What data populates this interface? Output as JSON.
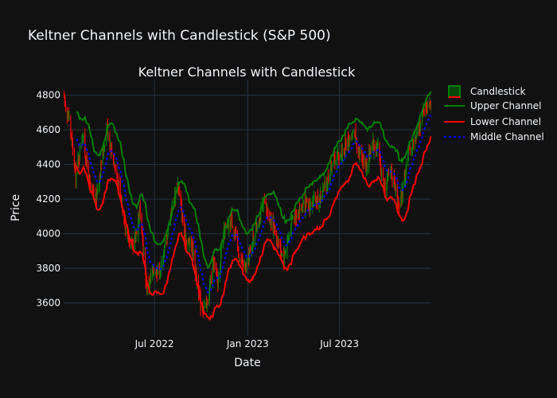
{
  "page_title": "Keltner Channels with Candlestick (S&P 500)",
  "colors": {
    "background": "#111111",
    "grid": "#283442",
    "text": "#f2f5fa",
    "increasing": "#008000",
    "decreasing": "#ff0000",
    "upper": "#008000",
    "lower": "#ff0000",
    "middle": "#0000ff"
  },
  "chart_data": {
    "type": "candlestick",
    "title": "Keltner Channels with Candlestick",
    "xlabel": "Date",
    "ylabel": "Price",
    "x_range": [
      "2022-01-03",
      "2023-12-29"
    ],
    "ylim": [
      3410,
      4890
    ],
    "x_ticks": [
      {
        "date": "2022-07-01",
        "label": "Jul 2022"
      },
      {
        "date": "2023-01-01",
        "label": "Jan 2023"
      },
      {
        "date": "2023-07-01",
        "label": "Jul 2023"
      }
    ],
    "y_ticks": [
      3600,
      3800,
      4000,
      4200,
      4400,
      4600,
      4800
    ],
    "legend": {
      "position": "top-right",
      "entries": [
        "Candlestick",
        "Upper Channel",
        "Lower Channel",
        "Middle Channel"
      ]
    },
    "anchors": [
      [
        "2022-01-03",
        4790
      ],
      [
        "2022-01-14",
        4660
      ],
      [
        "2022-01-27",
        4330
      ],
      [
        "2022-02-09",
        4580
      ],
      [
        "2022-02-24",
        4260
      ],
      [
        "2022-03-07",
        4190
      ],
      [
        "2022-03-29",
        4620
      ],
      [
        "2022-04-12",
        4420
      ],
      [
        "2022-04-26",
        4190
      ],
      [
        "2022-05-09",
        3990
      ],
      [
        "2022-05-20",
        3900
      ],
      [
        "2022-06-02",
        4140
      ],
      [
        "2022-06-16",
        3680
      ],
      [
        "2022-06-30",
        3790
      ],
      [
        "2022-07-14",
        3800
      ],
      [
        "2022-08-02",
        4120
      ],
      [
        "2022-08-16",
        4290
      ],
      [
        "2022-08-30",
        3980
      ],
      [
        "2022-09-13",
        3930
      ],
      [
        "2022-09-30",
        3590
      ],
      [
        "2022-10-12",
        3580
      ],
      [
        "2022-10-26",
        3840
      ],
      [
        "2022-11-03",
        3720
      ],
      [
        "2022-11-15",
        4000
      ],
      [
        "2022-12-01",
        4080
      ],
      [
        "2022-12-16",
        3860
      ],
      [
        "2022-12-28",
        3790
      ],
      [
        "2023-01-13",
        3990
      ],
      [
        "2023-02-02",
        4170
      ],
      [
        "2023-02-16",
        4090
      ],
      [
        "2023-03-01",
        3960
      ],
      [
        "2023-03-13",
        3860
      ],
      [
        "2023-03-31",
        4100
      ],
      [
        "2023-04-18",
        4150
      ],
      [
        "2023-05-01",
        4160
      ],
      [
        "2023-05-19",
        4190
      ],
      [
        "2023-06-05",
        4280
      ],
      [
        "2023-06-16",
        4420
      ],
      [
        "2023-07-03",
        4460
      ],
      [
        "2023-07-31",
        4590
      ],
      [
        "2023-08-09",
        4470
      ],
      [
        "2023-08-25",
        4390
      ],
      [
        "2023-09-01",
        4520
      ],
      [
        "2023-09-14",
        4500
      ],
      [
        "2023-09-27",
        4260
      ],
      [
        "2023-10-11",
        4370
      ],
      [
        "2023-10-27",
        4130
      ],
      [
        "2023-11-14",
        4480
      ],
      [
        "2023-11-30",
        4560
      ],
      [
        "2023-12-14",
        4720
      ],
      [
        "2023-12-29",
        4780
      ]
    ],
    "atr_multiplier": 2,
    "ema_period": 20
  }
}
